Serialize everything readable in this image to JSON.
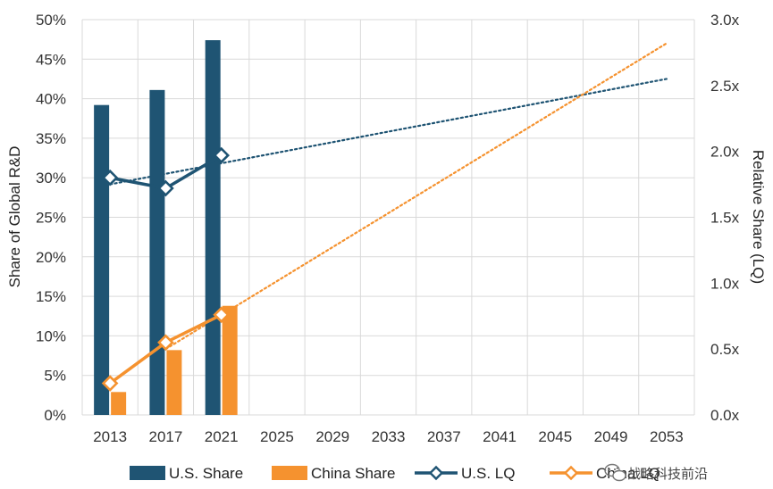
{
  "chart_data": {
    "type": "bar",
    "categories": [
      "2013",
      "2017",
      "2021",
      "2025",
      "2029",
      "2033",
      "2037",
      "2041",
      "2045",
      "2049",
      "2053"
    ],
    "ylabel_left": "Share of Global R&D",
    "ylabel_right": "Relative Share (LQ)",
    "ylim_left": [
      0,
      50
    ],
    "ylim_right": [
      0,
      3
    ],
    "left_ticks": [
      "0%",
      "5%",
      "10%",
      "15%",
      "20%",
      "25%",
      "30%",
      "35%",
      "40%",
      "45%",
      "50%"
    ],
    "right_ticks": [
      "0.0x",
      "0.5x",
      "1.0x",
      "1.5x",
      "2.0x",
      "2.5x",
      "3.0x"
    ],
    "grid": true,
    "legend_position": "bottom",
    "bar_series": [
      {
        "name": "U.S. Share",
        "color": "#1f5473",
        "values": [
          39.2,
          41.1,
          47.4
        ]
      },
      {
        "name": "China Share",
        "color": "#f5922f",
        "values": [
          2.9,
          8.2,
          13.8
        ]
      }
    ],
    "line_series": [
      {
        "name": "U.S. LQ",
        "color": "#1f5473",
        "values": [
          1.8,
          1.72,
          1.97
        ]
      },
      {
        "name": "China LQ",
        "color": "#f5922f",
        "values": [
          0.24,
          0.55,
          0.76
        ]
      }
    ],
    "trendlines": [
      {
        "series": "U.S. LQ",
        "color": "#1f5473",
        "from": {
          "x": "2013",
          "y": 1.75
        },
        "to": {
          "x": "2053",
          "y": 2.55
        }
      },
      {
        "series": "China LQ",
        "color": "#f5922f",
        "from": {
          "x": "2017",
          "y": 0.5
        },
        "to": {
          "x": "2053",
          "y": 2.82
        }
      }
    ]
  },
  "watermark": "战略科技前沿",
  "watermark_icon": "wechat-icon"
}
